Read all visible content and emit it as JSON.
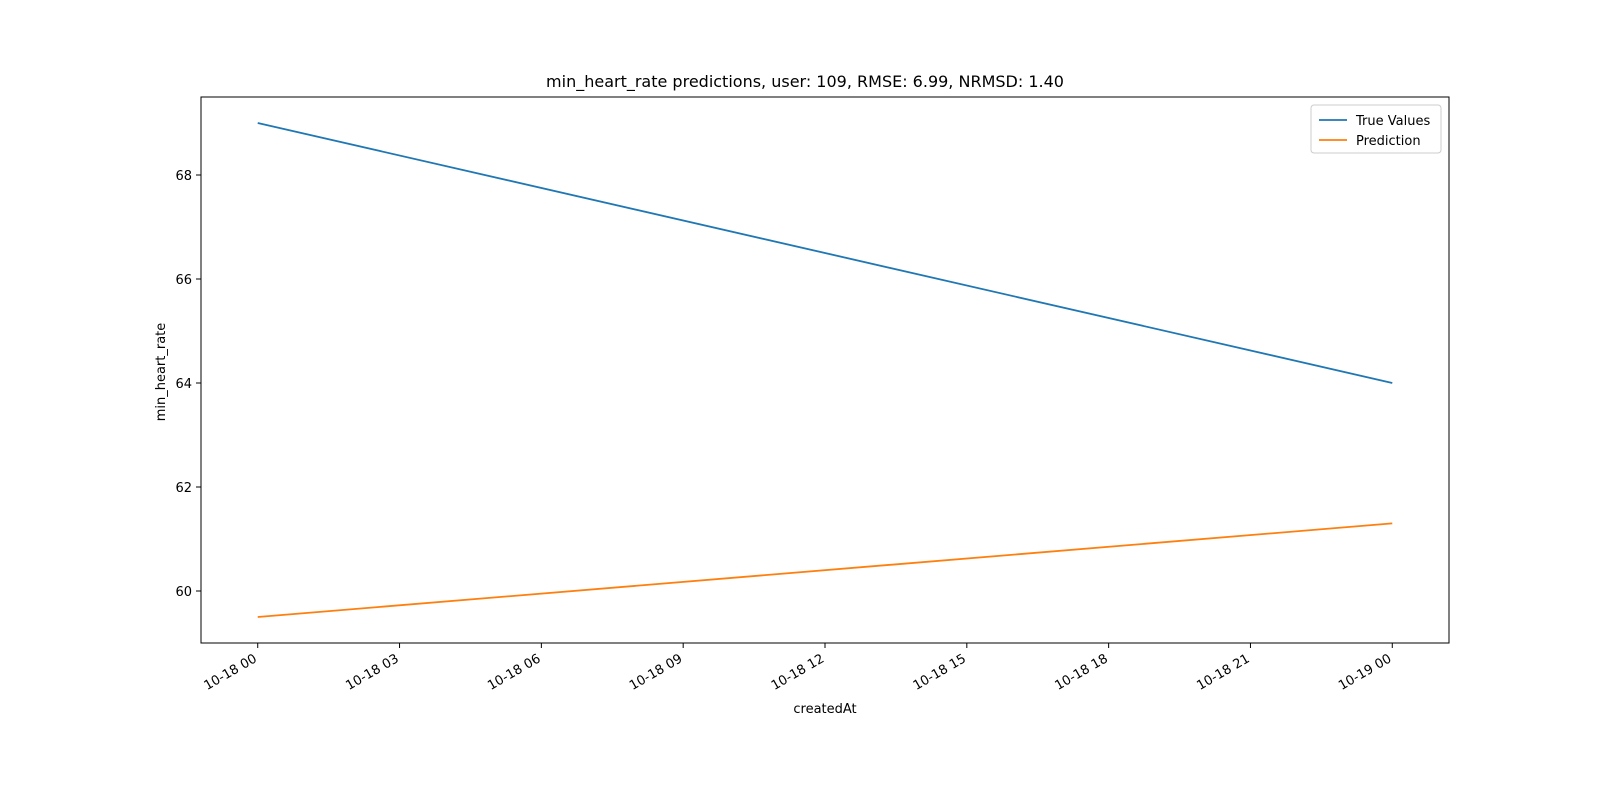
{
  "chart_data": {
    "type": "line",
    "title": "min_heart_rate predictions, user: 109, RMSE: 6.99, NRMSD: 1.40",
    "xlabel": "createdAt",
    "ylabel": "min_heart_rate",
    "x": [
      "2021-10-18T00:00",
      "2021-10-19T00:00"
    ],
    "xlim": [
      "2021-10-17T22:48",
      "2021-10-19T01:12"
    ],
    "xticks": [
      {
        "value": "2021-10-18T00:00",
        "label": "10-18 00"
      },
      {
        "value": "2021-10-18T03:00",
        "label": "10-18 03"
      },
      {
        "value": "2021-10-18T06:00",
        "label": "10-18 06"
      },
      {
        "value": "2021-10-18T09:00",
        "label": "10-18 09"
      },
      {
        "value": "2021-10-18T12:00",
        "label": "10-18 12"
      },
      {
        "value": "2021-10-18T15:00",
        "label": "10-18 15"
      },
      {
        "value": "2021-10-18T18:00",
        "label": "10-18 18"
      },
      {
        "value": "2021-10-18T21:00",
        "label": "10-18 21"
      },
      {
        "value": "2021-10-19T00:00",
        "label": "10-19 00"
      }
    ],
    "ylim": [
      59.0,
      69.5
    ],
    "yticks": [
      60,
      62,
      64,
      66,
      68
    ],
    "grid": false,
    "legend": "top-right",
    "series": [
      {
        "name": "True Values",
        "color": "#1f77b4",
        "values": [
          69.0,
          64.0
        ]
      },
      {
        "name": "Prediction",
        "color": "#ff7f0e",
        "values": [
          59.5,
          61.3
        ]
      }
    ]
  }
}
